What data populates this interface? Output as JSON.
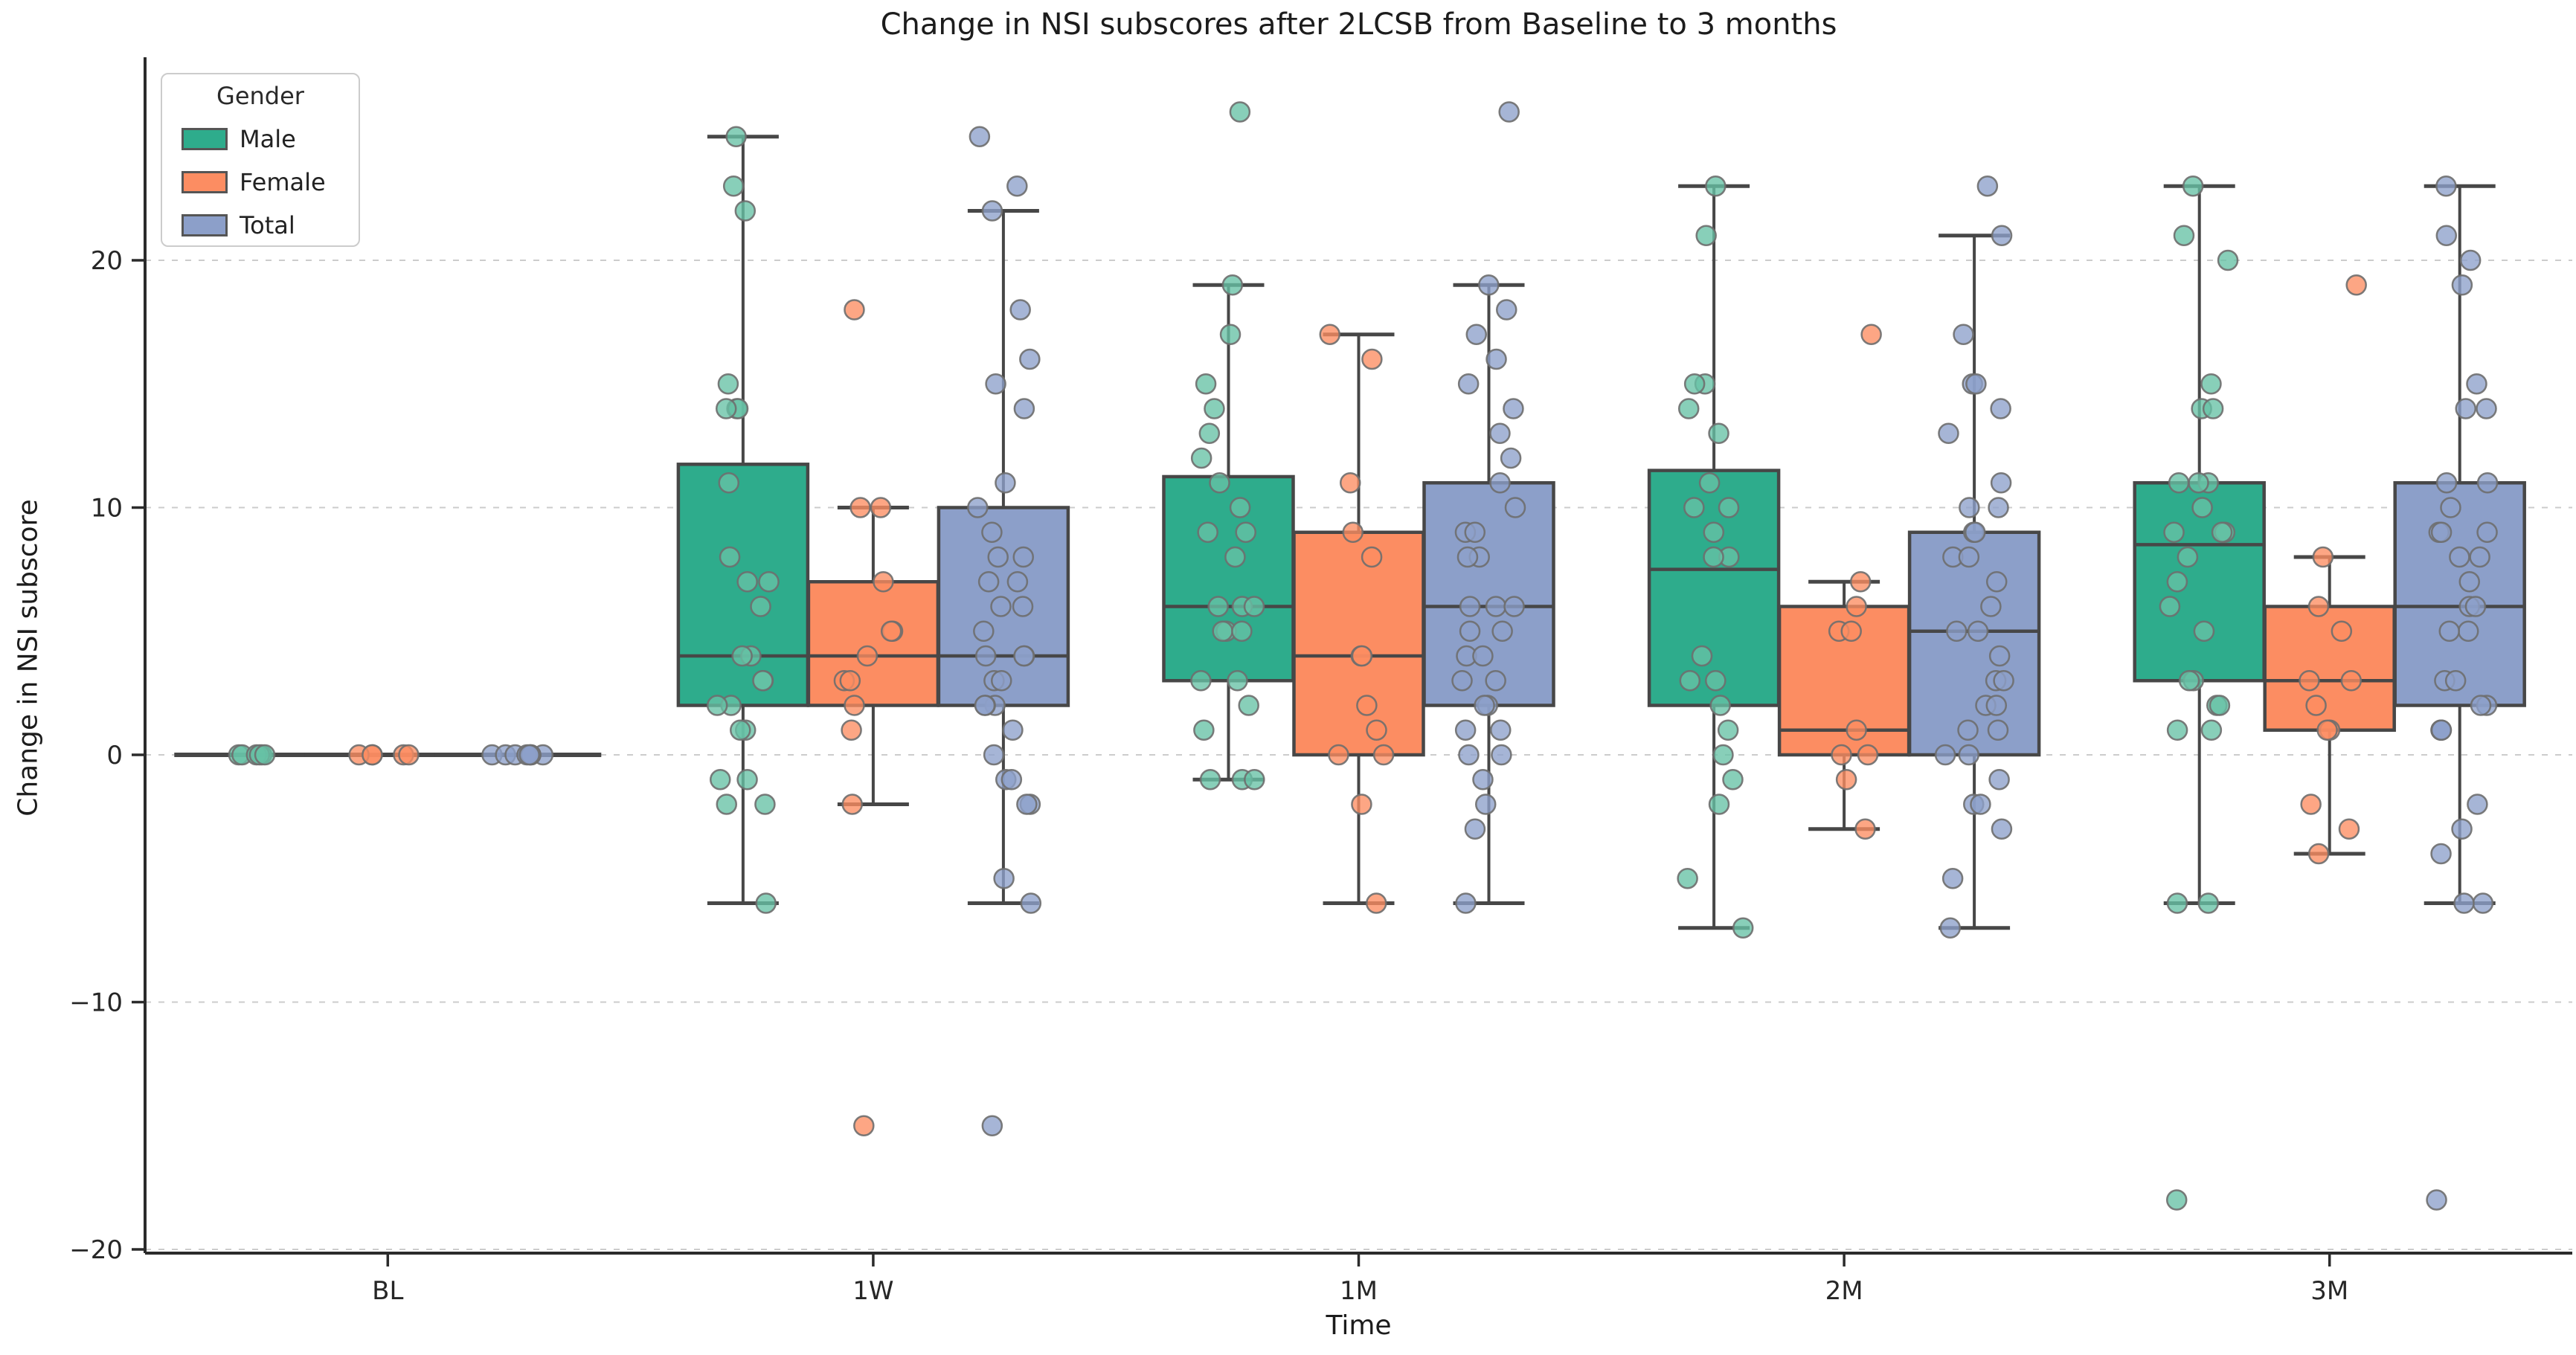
{
  "title": "Change in NSI subscores after 2LCSB from Baseline to 3 months",
  "chart_data": {
    "type": "box",
    "subtype": "grouped-boxplot-with-strip-points",
    "title": "Change in NSI subscores after 2LCSB from Baseline to 3 months",
    "xlabel": "Time",
    "ylabel": "Change in NSI subscore",
    "categories": [
      "BL",
      "1W",
      "1M",
      "2M",
      "3M"
    ],
    "y_ticks": {
      "values": [
        20,
        10,
        0,
        -10,
        -20
      ],
      "labels": [
        "20",
        "10",
        "0",
        "−10",
        "−20"
      ]
    },
    "ylim": [
      -20.5,
      28.3
    ],
    "grid": "horizontal dashed at each y tick",
    "legend": {
      "title": "Gender",
      "position": "upper left"
    },
    "colors": {
      "box_edge": "#474747",
      "grid": "#cccccc",
      "spine": "#2b2b2b",
      "tick_text": "#262626",
      "point_stroke": "#6e6e6e"
    },
    "series": [
      {
        "name": "Male",
        "box_color": "#2eac8c",
        "point_color": "#66c2a5",
        "boxes": [
          {
            "category": "BL",
            "whisker_low": 0,
            "q1": 0,
            "median": 0,
            "q3": 0,
            "whisker_high": 0,
            "outliers": []
          },
          {
            "category": "1W",
            "whisker_low": -6,
            "q1": 2,
            "median": 4,
            "q3": 11.75,
            "whisker_high": 25,
            "outliers": []
          },
          {
            "category": "1M",
            "whisker_low": -1,
            "q1": 3,
            "median": 6,
            "q3": 11.25,
            "whisker_high": 19,
            "outliers": [
              26
            ]
          },
          {
            "category": "2M",
            "whisker_low": -7,
            "q1": 2,
            "median": 7.5,
            "q3": 11.5,
            "whisker_high": 23,
            "outliers": []
          },
          {
            "category": "3M",
            "whisker_low": -6,
            "q1": 3,
            "median": 8.5,
            "q3": 11,
            "whisker_high": 23,
            "outliers": [
              -18
            ]
          }
        ],
        "points": [
          [
            0,
            0,
            0,
            0,
            0,
            0
          ],
          [
            25,
            23,
            22,
            15,
            14,
            14,
            14,
            11,
            8,
            7,
            7,
            6,
            4,
            4,
            3,
            3,
            2,
            2,
            1,
            1,
            -1,
            -1,
            -2,
            -2,
            -6
          ],
          [
            26,
            19,
            17,
            15,
            14,
            13,
            12,
            11,
            10,
            9,
            9,
            8,
            6,
            6,
            6,
            5,
            5,
            5,
            3,
            3,
            2,
            1,
            -1,
            -1,
            -1
          ],
          [
            23,
            21,
            15,
            15,
            14,
            13,
            11,
            10,
            10,
            9,
            8,
            8,
            4,
            3,
            3,
            2,
            1,
            0,
            -1,
            -2,
            -5,
            -7
          ],
          [
            23,
            21,
            20,
            15,
            14,
            14,
            11,
            11,
            11,
            10,
            9,
            9,
            9,
            8,
            7,
            6,
            5,
            3,
            3,
            2,
            2,
            1,
            1,
            -6,
            -6,
            -18
          ]
        ]
      },
      {
        "name": "Female",
        "box_color": "#fc8d62",
        "point_color": "#fc8d62",
        "boxes": [
          {
            "category": "BL",
            "whisker_low": 0,
            "q1": 0,
            "median": 0,
            "q3": 0,
            "whisker_high": 0,
            "outliers": []
          },
          {
            "category": "1W",
            "whisker_low": -2,
            "q1": 2,
            "median": 4,
            "q3": 7,
            "whisker_high": 10,
            "outliers": [
              18,
              -15
            ]
          },
          {
            "category": "1M",
            "whisker_low": -6,
            "q1": 0,
            "median": 4,
            "q3": 9,
            "whisker_high": 17,
            "outliers": []
          },
          {
            "category": "2M",
            "whisker_low": -3,
            "q1": 0,
            "median": 1,
            "q3": 6,
            "whisker_high": 7,
            "outliers": [
              17
            ]
          },
          {
            "category": "3M",
            "whisker_low": -4,
            "q1": 1,
            "median": 3,
            "q3": 6,
            "whisker_high": 8,
            "outliers": [
              19
            ]
          }
        ],
        "points": [
          [
            0,
            0,
            0,
            0,
            0
          ],
          [
            18,
            10,
            10,
            7,
            5,
            5,
            4,
            3,
            3,
            2,
            1,
            -2,
            -15
          ],
          [
            17,
            16,
            11,
            9,
            8,
            4,
            4,
            2,
            1,
            0,
            0,
            -2,
            -6
          ],
          [
            17,
            7,
            6,
            5,
            5,
            1,
            0,
            0,
            -1,
            -3
          ],
          [
            19,
            8,
            6,
            5,
            3,
            3,
            2,
            1,
            1,
            -2,
            -3,
            -4
          ]
        ]
      },
      {
        "name": "Total",
        "box_color": "#8c9fc9",
        "point_color": "#8da0cb",
        "boxes": [
          {
            "category": "BL",
            "whisker_low": 0,
            "q1": 0,
            "median": 0,
            "q3": 0,
            "whisker_high": 0,
            "outliers": []
          },
          {
            "category": "1W",
            "whisker_low": -6,
            "q1": 2,
            "median": 4,
            "q3": 10,
            "whisker_high": 22,
            "outliers": [
              25,
              23,
              -15
            ]
          },
          {
            "category": "1M",
            "whisker_low": -6,
            "q1": 2,
            "median": 6,
            "q3": 11,
            "whisker_high": 19,
            "outliers": [
              26
            ]
          },
          {
            "category": "2M",
            "whisker_low": -7,
            "q1": 0,
            "median": 5,
            "q3": 9,
            "whisker_high": 21,
            "outliers": [
              23
            ]
          },
          {
            "category": "3M",
            "whisker_low": -6,
            "q1": 2,
            "median": 6,
            "q3": 11,
            "whisker_high": 23,
            "outliers": [
              -18
            ]
          }
        ],
        "points": [
          [
            0,
            0,
            0,
            0,
            0,
            0,
            0,
            0
          ],
          [
            25,
            23,
            22,
            18,
            16,
            15,
            14,
            11,
            10,
            9,
            8,
            8,
            7,
            7,
            6,
            6,
            5,
            4,
            4,
            4,
            3,
            3,
            2,
            2,
            2,
            1,
            0,
            -1,
            -1,
            -2,
            -2,
            -5,
            -6,
            -15
          ],
          [
            26,
            19,
            18,
            17,
            16,
            15,
            14,
            13,
            12,
            11,
            10,
            9,
            9,
            8,
            8,
            6,
            6,
            6,
            5,
            5,
            4,
            4,
            3,
            3,
            2,
            2,
            1,
            1,
            0,
            0,
            -1,
            -2,
            -3,
            -6
          ],
          [
            23,
            21,
            17,
            15,
            15,
            14,
            13,
            11,
            10,
            10,
            9,
            9,
            8,
            8,
            7,
            6,
            5,
            5,
            4,
            3,
            3,
            2,
            2,
            1,
            1,
            0,
            0,
            -1,
            -2,
            -2,
            -3,
            -5,
            -7
          ],
          [
            23,
            21,
            20,
            19,
            15,
            14,
            14,
            11,
            11,
            10,
            9,
            9,
            9,
            8,
            8,
            7,
            6,
            6,
            5,
            5,
            3,
            3,
            2,
            2,
            1,
            1,
            1,
            -2,
            -3,
            -4,
            -6,
            -6,
            -18
          ]
        ]
      }
    ]
  }
}
